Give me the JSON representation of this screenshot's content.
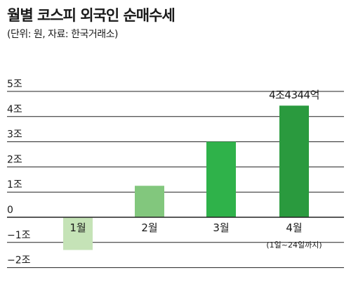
{
  "header": {
    "title": "월별 코스피 외국인 순매수세",
    "subtitle": "(단위: 원, 자료: 한국거래소)"
  },
  "chart_data": {
    "type": "bar",
    "categories": [
      "1월",
      "2월",
      "3월",
      "4월"
    ],
    "values": [
      -1.3,
      1.25,
      3.0,
      4.4344
    ],
    "colors": [
      "#c5e3b7",
      "#82c77d",
      "#2fb24a",
      "#2a9a3e"
    ],
    "yticks": [
      {
        "value": 5,
        "label": "5조"
      },
      {
        "value": 4,
        "label": "4조"
      },
      {
        "value": 3,
        "label": "3조"
      },
      {
        "value": 2,
        "label": "2조"
      },
      {
        "value": 1,
        "label": "1조"
      },
      {
        "value": 0,
        "label": "0"
      },
      {
        "value": -1,
        "label": "−1조"
      },
      {
        "value": -2,
        "label": "−2조"
      }
    ],
    "ylim": [
      -2,
      5
    ],
    "grid": true,
    "annotations": [
      {
        "category_index": 3,
        "text": "4조4344억",
        "placement": "above-bar"
      },
      {
        "category_index": 3,
        "text": "(1일~24일까지)",
        "placement": "below-label"
      }
    ]
  }
}
